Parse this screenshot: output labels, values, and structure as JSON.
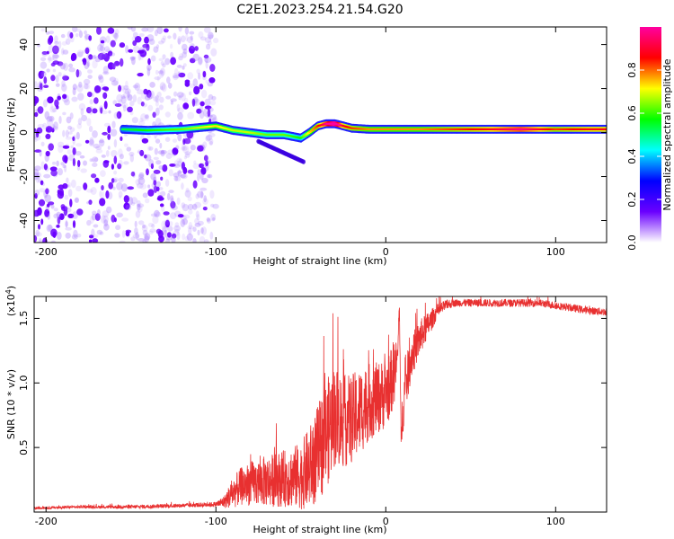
{
  "title": "C2E1.2023.254.21.54.G20",
  "chart_data": [
    {
      "type": "heatmap",
      "xlabel": "Height of straight line (km)",
      "ylabel": "Frequency (Hz)",
      "xlim": [
        -207,
        130
      ],
      "ylim": [
        -50,
        48
      ],
      "xticks": [
        -200,
        -100,
        0,
        100
      ],
      "xtick_labels": [
        "-200",
        "-100",
        "0",
        "100"
      ],
      "yticks": [
        -40,
        -20,
        0,
        20,
        40
      ],
      "ytick_labels": [
        "-40",
        "-20",
        "0",
        "20",
        "40"
      ],
      "colorbar": {
        "label": "Normalized spectral amplitude",
        "range": [
          0.0,
          1.0
        ],
        "ticks": [
          0.0,
          0.2,
          0.4,
          0.6,
          0.8
        ],
        "tick_labels": [
          "0.0",
          "0.2",
          "0.4",
          "0.6",
          "0.8"
        ],
        "colors": [
          "#ffffff",
          "#6a00ff",
          "#0000ff",
          "#00ffff",
          "#00ff00",
          "#ffff00",
          "#ff0000",
          "#ff00a0"
        ]
      },
      "signal_track": {
        "x": [
          -155,
          -140,
          -120,
          -100,
          -90,
          -80,
          -70,
          -60,
          -50,
          -45,
          -40,
          -35,
          -30,
          -25,
          -20,
          -10,
          0,
          10,
          20,
          40,
          60,
          80,
          100,
          120,
          130
        ],
        "y": [
          1.5,
          1.0,
          1.5,
          3.0,
          1.0,
          0.0,
          -1.0,
          -1.0,
          -2.5,
          0.0,
          3.0,
          4.0,
          4.0,
          3.0,
          2.0,
          1.5,
          1.5,
          1.5,
          1.5,
          1.5,
          1.5,
          1.5,
          1.5,
          1.5,
          1.5
        ],
        "amplitude": [
          0.25,
          0.3,
          0.35,
          0.45,
          0.4,
          0.4,
          0.35,
          0.35,
          0.3,
          0.45,
          0.55,
          0.7,
          0.9,
          0.6,
          0.55,
          0.5,
          0.5,
          0.5,
          0.5,
          0.55,
          0.6,
          0.7,
          0.55,
          0.6,
          0.6
        ]
      },
      "noise_region": {
        "x_range": [
          -207,
          -100
        ],
        "y_range": [
          -50,
          48
        ]
      }
    },
    {
      "type": "line",
      "xlabel": "Height of straight line (km)",
      "ylabel": "SNR (10 * v/v)",
      "y_multiplier": "(x10",
      "y_multiplier_exp": "4",
      "y_multiplier_close": ")",
      "xlim": [
        -207,
        130
      ],
      "ylim": [
        0,
        1.67
      ],
      "xticks": [
        -200,
        -100,
        0,
        100
      ],
      "xtick_labels": [
        "-200",
        "-100",
        "0",
        "100"
      ],
      "yticks": [
        0.5,
        1.0,
        1.5
      ],
      "ytick_labels": [
        "0.5",
        "1.0",
        "1.5"
      ],
      "color": "#e83030",
      "series": [
        {
          "x": [
            -207,
            -180,
            -150,
            -120,
            -100,
            -95,
            -90,
            -85,
            -80,
            -70,
            -60,
            -50,
            -45,
            -40,
            -35,
            -30,
            -25,
            -20,
            -15,
            -10,
            -5,
            0,
            3,
            5,
            7,
            8,
            9,
            10,
            12,
            15,
            20,
            25,
            30,
            35,
            40,
            50,
            60,
            70,
            80,
            90,
            100,
            110,
            120,
            130
          ],
          "y": [
            0.03,
            0.04,
            0.04,
            0.05,
            0.06,
            0.08,
            0.15,
            0.2,
            0.22,
            0.24,
            0.26,
            0.28,
            0.34,
            0.45,
            0.6,
            0.75,
            0.7,
            0.72,
            0.78,
            0.85,
            0.88,
            0.92,
            1.0,
            1.1,
            1.2,
            1.62,
            0.55,
            0.8,
            1.0,
            1.2,
            1.35,
            1.45,
            1.55,
            1.6,
            1.62,
            1.62,
            1.62,
            1.62,
            1.62,
            1.62,
            1.6,
            1.58,
            1.56,
            1.55
          ]
        }
      ],
      "noise_amplitude": [
        0.01,
        0.01,
        0.015,
        0.015,
        0.02,
        0.05,
        0.12,
        0.15,
        0.17,
        0.2,
        0.22,
        0.26,
        0.32,
        0.38,
        0.42,
        0.4,
        0.36,
        0.35,
        0.34,
        0.3,
        0.28,
        0.27,
        0.26,
        0.26,
        0.1,
        0.02,
        0.1,
        0.2,
        0.2,
        0.17,
        0.14,
        0.1,
        0.06,
        0.04,
        0.03,
        0.03,
        0.03,
        0.03,
        0.03,
        0.03,
        0.03,
        0.03,
        0.03,
        0.03
      ]
    }
  ]
}
